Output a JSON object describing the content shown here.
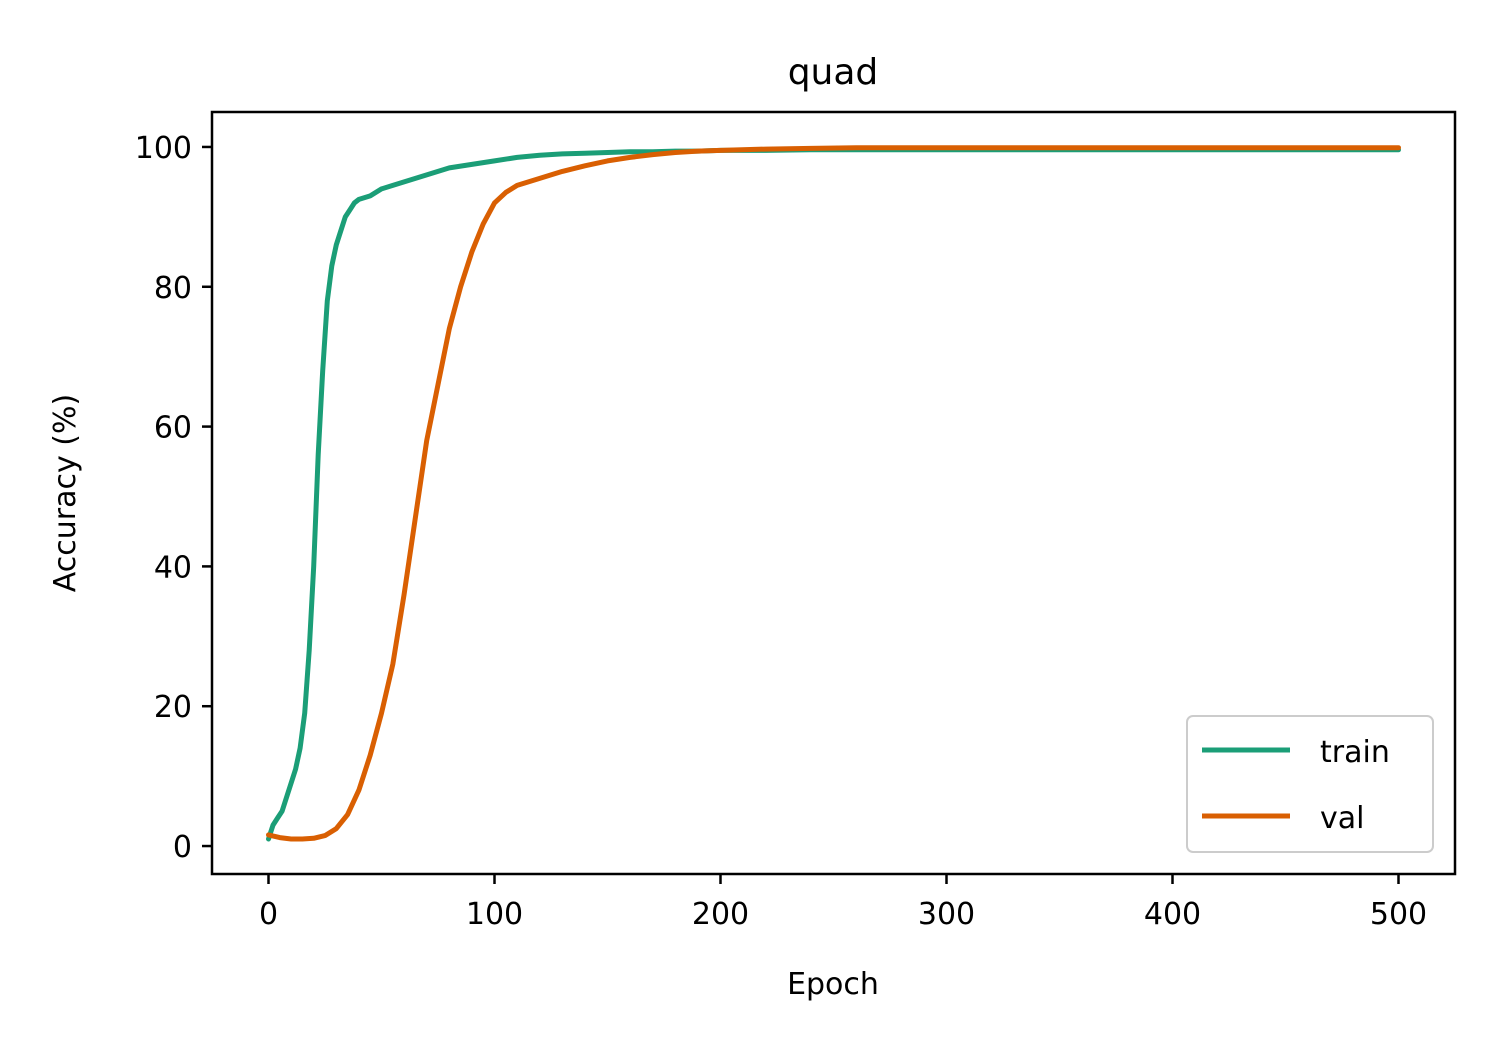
{
  "chart_data": {
    "type": "line",
    "title": "quad",
    "xlabel": "Epoch",
    "ylabel": "Accuracy (%)",
    "xlim": [
      -25,
      525
    ],
    "ylim": [
      -4,
      105
    ],
    "xticks": [
      0,
      100,
      200,
      300,
      400,
      500
    ],
    "yticks": [
      0,
      20,
      40,
      60,
      80,
      100
    ],
    "grid": false,
    "legend_position": "lower-right",
    "series": [
      {
        "name": "train",
        "color": "#1b9e77",
        "x": [
          0,
          2,
          4,
          6,
          8,
          10,
          12,
          14,
          16,
          18,
          20,
          22,
          24,
          26,
          28,
          30,
          32,
          34,
          36,
          38,
          40,
          45,
          50,
          55,
          60,
          70,
          80,
          90,
          100,
          110,
          120,
          130,
          140,
          150,
          160,
          170,
          180,
          190,
          200,
          220,
          240,
          260,
          280,
          300,
          350,
          400,
          450,
          500
        ],
        "y": [
          1,
          3,
          4,
          5,
          7,
          9,
          11,
          14,
          19,
          28,
          40,
          56,
          68,
          78,
          83,
          86,
          88,
          90,
          91,
          92,
          92.5,
          93,
          94,
          94.5,
          95,
          96,
          97,
          97.5,
          98,
          98.5,
          98.8,
          99,
          99.1,
          99.2,
          99.3,
          99.3,
          99.4,
          99.4,
          99.5,
          99.5,
          99.6,
          99.6,
          99.6,
          99.6,
          99.6,
          99.6,
          99.6,
          99.6
        ]
      },
      {
        "name": "val",
        "color": "#d95f02",
        "x": [
          0,
          5,
          10,
          15,
          20,
          25,
          30,
          35,
          40,
          45,
          50,
          55,
          60,
          65,
          70,
          75,
          80,
          85,
          90,
          95,
          100,
          105,
          110,
          120,
          130,
          140,
          150,
          160,
          170,
          180,
          190,
          200,
          220,
          240,
          260,
          300,
          350,
          400,
          450,
          500
        ],
        "y": [
          1.6,
          1.2,
          1,
          1,
          1.1,
          1.5,
          2.5,
          4.5,
          8,
          13,
          19,
          26,
          36,
          47,
          58,
          66,
          74,
          80,
          85,
          89,
          92,
          93.5,
          94.5,
          95.5,
          96.5,
          97.3,
          98,
          98.5,
          98.9,
          99.2,
          99.4,
          99.5,
          99.7,
          99.8,
          99.9,
          99.9,
          99.9,
          99.9,
          99.9,
          99.9
        ]
      }
    ]
  }
}
